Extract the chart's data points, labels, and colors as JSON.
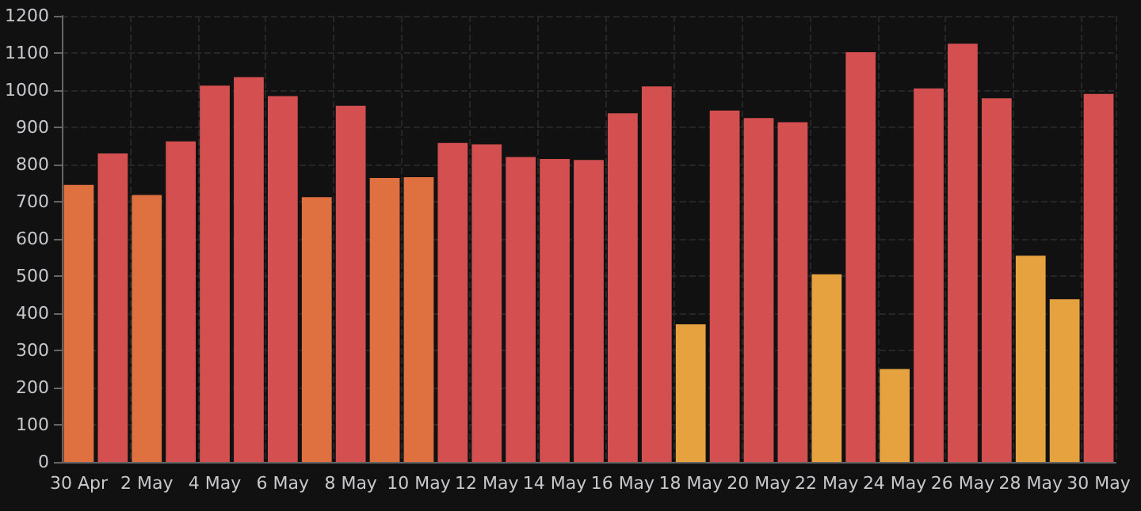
{
  "chart_data": {
    "type": "bar",
    "categories": [
      "30 Apr",
      null,
      "2 May",
      null,
      "4 May",
      null,
      "6 May",
      null,
      "8 May",
      null,
      "10 May",
      null,
      "12 May",
      null,
      "14 May",
      null,
      "16 May",
      null,
      "18 May",
      null,
      "20 May",
      null,
      "22 May",
      null,
      "24 May",
      null,
      "26 May",
      null,
      "28 May",
      null,
      "30 May"
    ],
    "values": [
      745,
      830,
      718,
      862,
      1012,
      1035,
      984,
      712,
      958,
      764,
      766,
      858,
      854,
      820,
      815,
      812,
      938,
      1010,
      370,
      945,
      925,
      914,
      505,
      1102,
      250,
      1005,
      1125,
      978,
      555,
      438,
      990
    ],
    "colors": [
      "#df7141",
      "#d45050",
      "#df7141",
      "#d45050",
      "#d45050",
      "#d45050",
      "#d45050",
      "#df7141",
      "#d45050",
      "#df7141",
      "#df7141",
      "#d45050",
      "#d45050",
      "#d45050",
      "#d45050",
      "#d45050",
      "#d45050",
      "#d45050",
      "#e6a23f",
      "#d45050",
      "#d45050",
      "#d45050",
      "#e6a23f",
      "#d45050",
      "#e6a23f",
      "#d45050",
      "#d45050",
      "#d45050",
      "#e6a23f",
      "#e6a23f",
      "#d45050"
    ],
    "ylim": [
      0,
      1200
    ],
    "yticks": [
      0,
      100,
      200,
      300,
      400,
      500,
      600,
      700,
      800,
      900,
      1000,
      1100,
      1200
    ],
    "grid": true
  }
}
